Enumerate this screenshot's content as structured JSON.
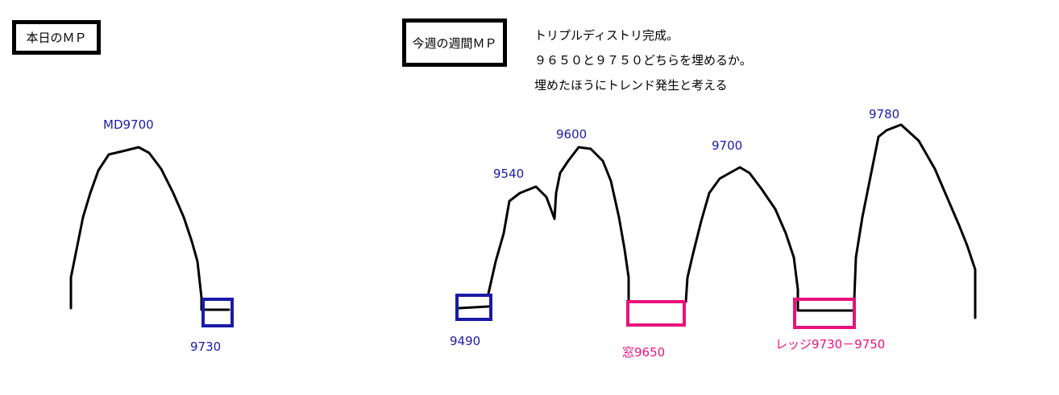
{
  "today": {
    "title": "本日のＭＰ",
    "peak_label": "MD9700",
    "low_label": "9730"
  },
  "week": {
    "title": "今週の週間ＭＰ",
    "notes": [
      "トリプルディストリ完成。",
      "９６５０と９７５０どちらを埋めるか。",
      "埋めたほうにトレンド発生と考える"
    ],
    "labels": {
      "low": "9490",
      "peak1": "9540",
      "peak2": "9600",
      "peak3": "9700",
      "peak4": "9780",
      "gap": "窓9650",
      "ledge": "レッジ9730－9750"
    }
  },
  "colors": {
    "blue": "#1a1aaa",
    "pink": "#e8127c",
    "line": "#000000"
  }
}
